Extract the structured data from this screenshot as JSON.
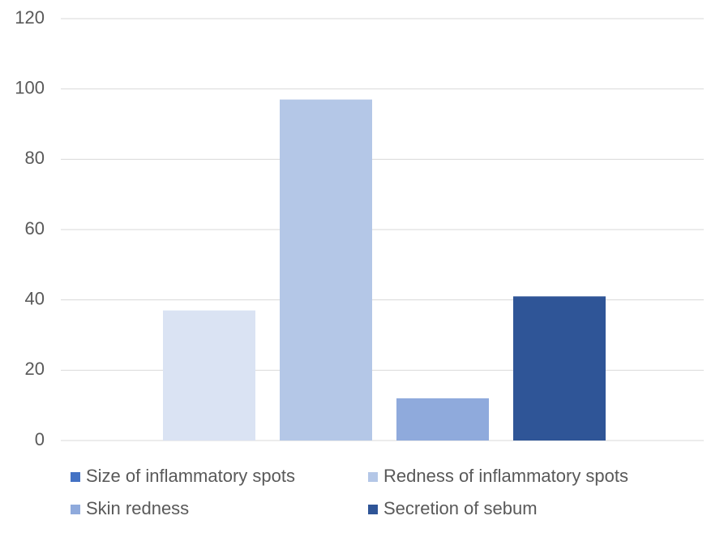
{
  "chart_data": {
    "type": "bar",
    "categories": [
      "Size of inflammatory spots",
      "Redness of inflammatory spots",
      "Skin redness",
      "Secretion of sebum"
    ],
    "values": [
      37,
      97,
      12,
      41
    ],
    "colors": [
      "#dae3f3",
      "#b4c7e7",
      "#8faadc",
      "#2f5597"
    ],
    "legend_colors": [
      "#4472c4",
      "#b4c7e7",
      "#8faadc",
      "#2f5597"
    ],
    "ylim": [
      0,
      120
    ],
    "yticks": [
      0,
      20,
      40,
      60,
      80,
      100,
      120
    ],
    "grid": true,
    "legend": "bottom"
  }
}
